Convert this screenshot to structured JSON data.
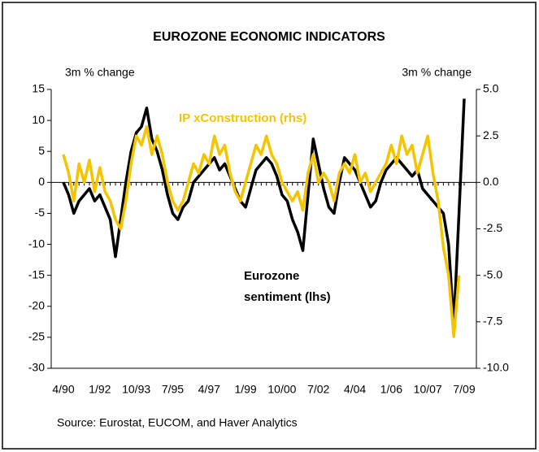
{
  "chart_data": {
    "type": "line",
    "title": "EUROZONE ECONOMIC INDICATORS",
    "y_label": "3m % change",
    "y2_label": "3m % change",
    "source": "Source: Eurostat, EUCOM, and Haver Analytics",
    "x": [
      "4/90",
      "7/90",
      "10/90",
      "1/91",
      "4/91",
      "7/91",
      "10/91",
      "1/92",
      "4/92",
      "7/92",
      "10/92",
      "1/93",
      "4/93",
      "7/93",
      "10/93",
      "1/94",
      "4/94",
      "7/94",
      "10/94",
      "1/95",
      "4/95",
      "7/95",
      "10/95",
      "1/96",
      "4/96",
      "7/96",
      "10/96",
      "1/97",
      "4/97",
      "7/97",
      "10/97",
      "1/98",
      "4/98",
      "7/98",
      "10/98",
      "1/99",
      "4/99",
      "7/99",
      "10/99",
      "1/00",
      "4/00",
      "7/00",
      "10/00",
      "1/01",
      "4/01",
      "7/01",
      "10/01",
      "1/02",
      "4/02",
      "7/02",
      "10/02",
      "1/03",
      "4/03",
      "7/03",
      "10/03",
      "1/04",
      "4/04",
      "7/04",
      "10/04",
      "1/05",
      "4/05",
      "7/05",
      "10/05",
      "1/06",
      "4/06",
      "7/06",
      "10/06",
      "1/07",
      "4/07",
      "7/07",
      "10/07",
      "1/08",
      "4/08",
      "7/08",
      "10/08",
      "1/09",
      "4/09",
      "7/09"
    ],
    "series": [
      {
        "name": "Eurozone sentiment (lhs)",
        "color": "#000000",
        "axis": "y",
        "values": [
          0,
          -2,
          -5,
          -3,
          -2,
          -1,
          -3,
          -2,
          -4,
          -6,
          -12,
          -6,
          0,
          5,
          8,
          9,
          12,
          7,
          5,
          2,
          -2,
          -5,
          -6,
          -4,
          -3,
          0,
          1,
          2,
          3,
          4,
          2,
          3,
          1,
          -1,
          -3,
          -4,
          -1,
          2,
          3,
          4,
          3,
          1,
          -2,
          -3,
          -6,
          -8,
          -11,
          -2,
          7,
          3,
          -1,
          -4,
          -5,
          0,
          4,
          3,
          2,
          0,
          -2,
          -4,
          -3,
          0,
          2,
          3,
          4,
          3,
          2,
          1,
          2,
          -1,
          -2,
          -3,
          -4,
          -5,
          -10,
          -23,
          -5,
          13.5
        ]
      },
      {
        "name": "IP xConstruction (rhs)",
        "color": "#f5c400",
        "axis": "y2",
        "values": [
          1.5,
          0.5,
          -1.0,
          1.0,
          0.0,
          1.2,
          -0.5,
          0.8,
          -0.5,
          -1.0,
          -2.0,
          -2.5,
          -1.0,
          1.0,
          2.5,
          2.0,
          3.0,
          1.5,
          2.5,
          1.5,
          0.0,
          -1.0,
          -1.5,
          -1.0,
          0.0,
          1.0,
          0.5,
          1.5,
          1.0,
          2.5,
          1.5,
          2.0,
          0.5,
          -0.5,
          -1.0,
          0.0,
          1.0,
          2.0,
          1.5,
          2.5,
          1.5,
          1.0,
          0.0,
          -0.5,
          -1.0,
          -0.5,
          -1.5,
          0.5,
          1.5,
          0.0,
          0.5,
          0.0,
          -1.0,
          0.5,
          1.0,
          0.5,
          1.5,
          0.0,
          0.5,
          -0.5,
          0.0,
          0.5,
          1.0,
          2.0,
          1.0,
          2.5,
          1.5,
          2.0,
          0.5,
          1.5,
          2.5,
          0.5,
          -1.0,
          -3.5,
          -5.0,
          -8.3,
          -5.0,
          null
        ]
      }
    ],
    "ylim": [
      -30,
      15
    ],
    "yticks": [
      -30,
      -25,
      -20,
      -15,
      -10,
      -5,
      0,
      5,
      10,
      15
    ],
    "y2lim": [
      -10,
      5
    ],
    "y2ticks": [
      {
        "value": -10,
        "label": "-10.0"
      },
      {
        "value": -7.5,
        "label": "-7.5"
      },
      {
        "value": -5,
        "label": "-5.0"
      },
      {
        "value": -2.5,
        "label": "-2.5"
      },
      {
        "value": 0,
        "label": "0.0"
      },
      {
        "value": 2.5,
        "label": "2.5"
      },
      {
        "value": 5,
        "label": "5.0"
      }
    ]
  }
}
